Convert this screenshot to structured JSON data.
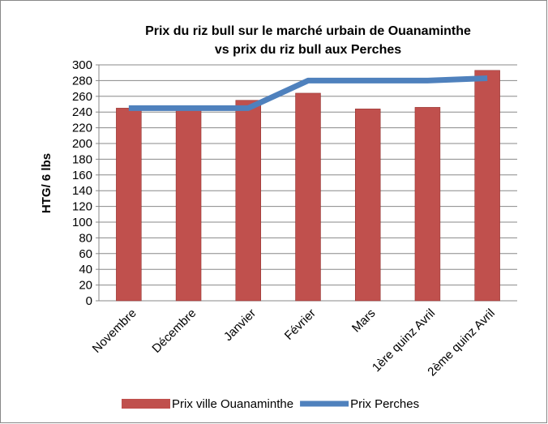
{
  "chart_data": {
    "type": "bar",
    "title": [
      "Prix du riz bull sur le marché urbain de Ouanaminthe",
      "vs prix du  riz bull aux Perches"
    ],
    "y_label": "HTG/ 6 lbs",
    "categories": [
      "Novembre",
      "Décembre",
      "Janvier",
      "Février",
      "Mars",
      "1ère quinz Avril",
      "2ème quinz Avril"
    ],
    "series": [
      {
        "name": "Prix ville Ouanaminthe",
        "type": "bar",
        "color": "#c0504d",
        "values": [
          245,
          244,
          255,
          264,
          244,
          246,
          293
        ]
      },
      {
        "name": "Prix Perches",
        "type": "line",
        "color": "#4f81bd",
        "values": [
          245,
          245,
          245,
          280,
          280,
          280,
          283
        ]
      }
    ],
    "ylim": [
      0,
      300
    ],
    "yticks": [
      0,
      20,
      40,
      60,
      80,
      100,
      120,
      140,
      160,
      180,
      200,
      220,
      240,
      260,
      280,
      300
    ],
    "grid": true,
    "legend": "bottom"
  }
}
